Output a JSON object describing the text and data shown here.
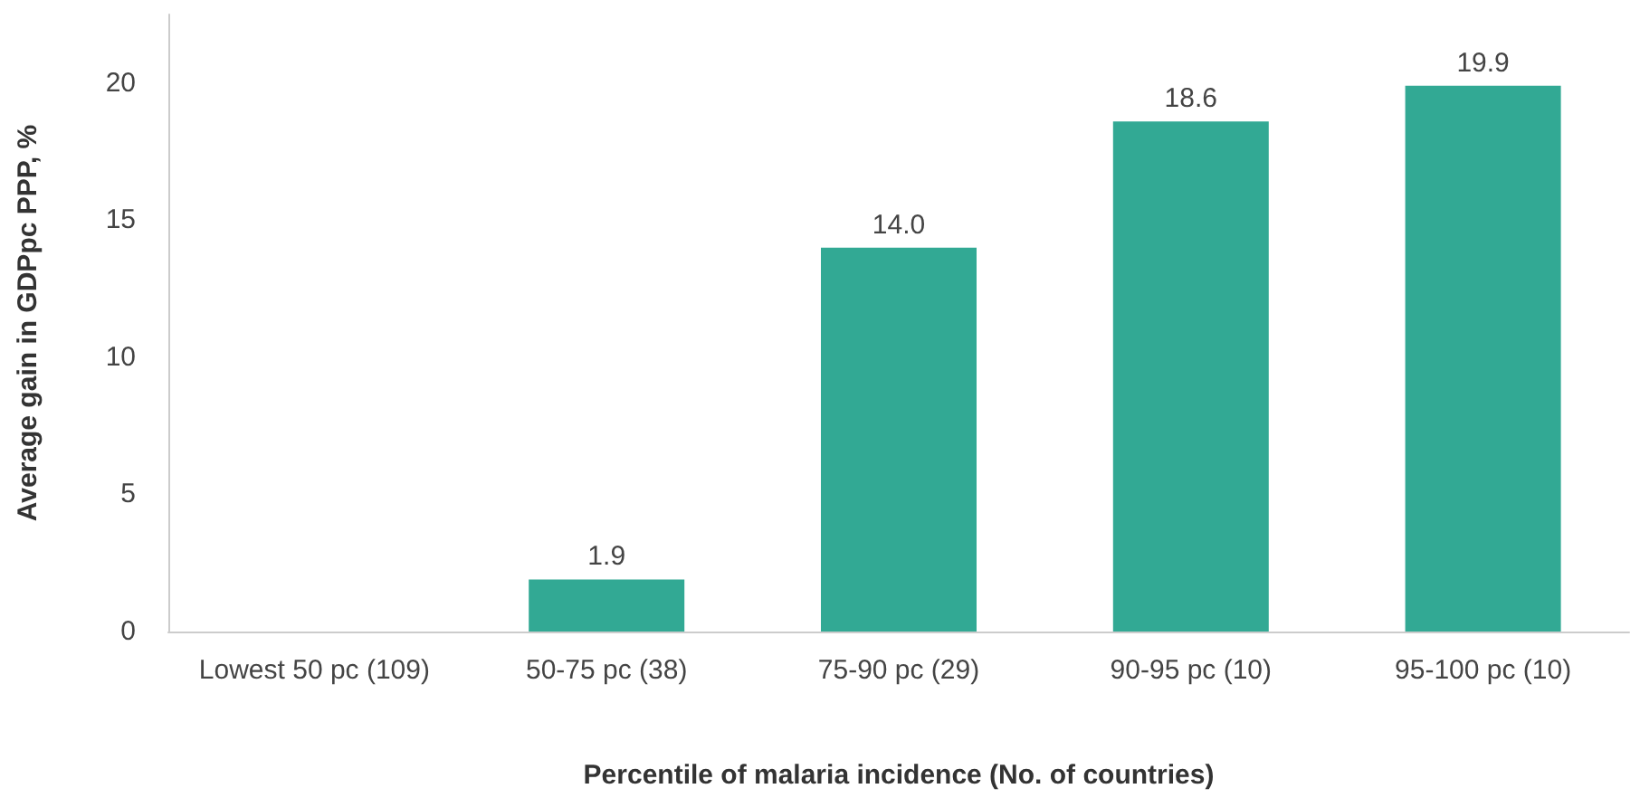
{
  "chart_data": {
    "type": "bar",
    "xlabel": "Percentile of malaria incidence (No. of countries)",
    "ylabel": "Average gain in GDPpc PPP, %",
    "categories": [
      "Lowest 50 pc (109)",
      "50-75 pc (38)",
      "75-90 pc (29)",
      "90-95 pc (10)",
      "95-100 pc (10)"
    ],
    "values": [
      0,
      1.9,
      14.0,
      18.6,
      19.9
    ],
    "value_labels": [
      null,
      "1.9",
      "14.0",
      "18.6",
      "19.9"
    ],
    "color": "#32a994",
    "ylim": [
      0,
      22.5
    ],
    "yticks": [
      0,
      5,
      10,
      15,
      20
    ]
  }
}
